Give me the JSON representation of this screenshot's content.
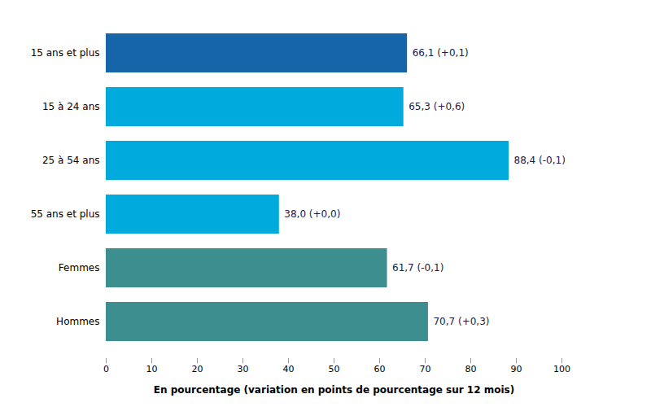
{
  "chart_data": {
    "type": "bar",
    "orientation": "horizontal",
    "categories": [
      "15 ans et plus",
      "15 à 24 ans",
      "25 à 54 ans",
      "55 ans et plus",
      "Femmes",
      "Hommes"
    ],
    "values": [
      66.1,
      65.3,
      88.4,
      38.0,
      61.7,
      70.7
    ],
    "value_labels": [
      "66,1 (+0,1)",
      "65,3 (+0,6)",
      "88,4 (-0,1)",
      "38,0 (+0,0)",
      "61,7 (-0,1)",
      "70,7 (+0,3)"
    ],
    "data_labels": true,
    "colors": [
      "#1565a8",
      "#00aadd",
      "#00aadd",
      "#00aadd",
      "#3d8e8e",
      "#3d8e8e"
    ],
    "xlabel": "En pourcentage (variation en points de pourcentage sur 12 mois)",
    "xlim": [
      0,
      100
    ],
    "xticks": [
      0,
      10,
      20,
      30,
      40,
      50,
      60,
      70,
      80,
      90,
      100
    ],
    "grid": false
  }
}
